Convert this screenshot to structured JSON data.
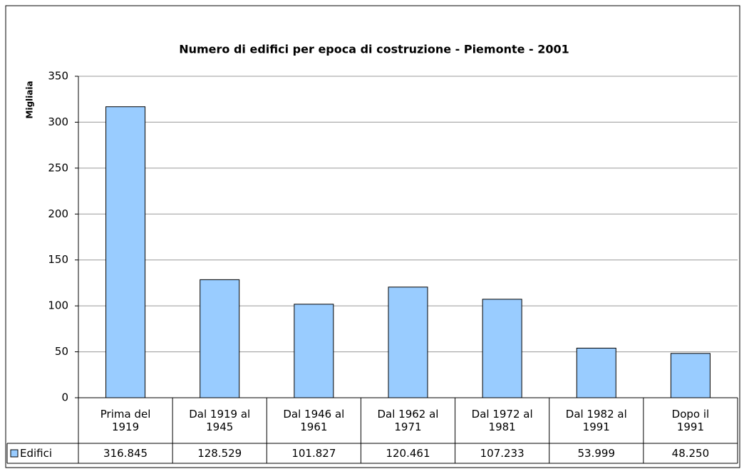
{
  "chart_data": {
    "type": "bar",
    "title": "Numero di edifici per epoca di costruzione - Piemonte - 2001",
    "y_label": "Migliaia",
    "categories": [
      "Prima del 1919",
      "Dal 1919 al 1945",
      "Dal 1946 al 1961",
      "Dal 1962 al 1971",
      "Dal 1972 al 1981",
      "Dal 1982 al 1991",
      "Dopo il 1991"
    ],
    "series": [
      {
        "name": "Edifici",
        "color": "#99ccff",
        "values": [
          316.845,
          128.529,
          101.827,
          120.461,
          107.233,
          53.999,
          48.25
        ],
        "value_labels": [
          "316.845",
          "128.529",
          "101.827",
          "120.461",
          "107.233",
          "53.999",
          "48.250"
        ]
      }
    ],
    "ylim": [
      0,
      350
    ],
    "yticks": [
      0,
      50,
      100,
      150,
      200,
      250,
      300,
      350
    ],
    "grid": true
  }
}
